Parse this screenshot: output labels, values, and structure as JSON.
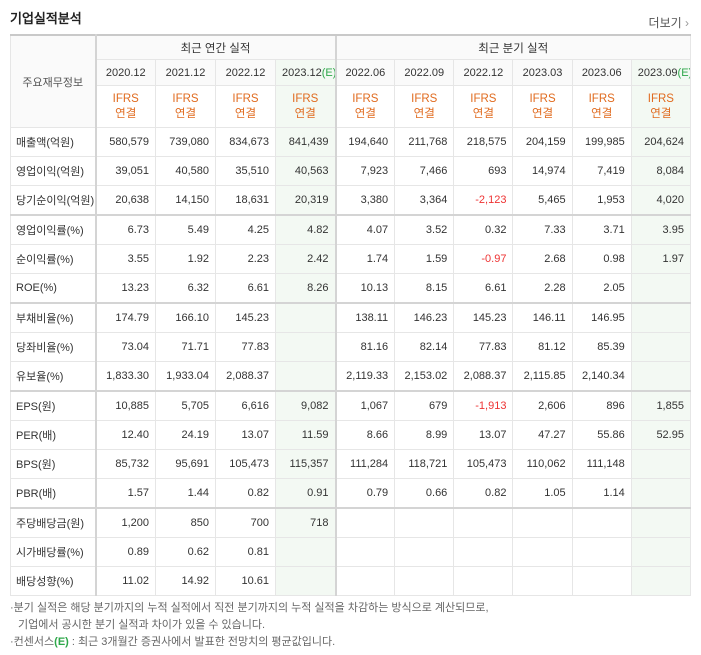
{
  "header": {
    "title": "기업실적분석",
    "more": "더보기"
  },
  "table": {
    "corner": "주요재무정보",
    "groups": [
      {
        "label": "최근 연간 실적",
        "span": 4
      },
      {
        "label": "최근 분기 실적",
        "span": 6
      }
    ],
    "periods": [
      {
        "date": "2020.12"
      },
      {
        "date": "2021.12"
      },
      {
        "date": "2022.12"
      },
      {
        "date": "2023.12",
        "estimate": "(E)"
      },
      {
        "date": "2022.06"
      },
      {
        "date": "2022.09"
      },
      {
        "date": "2022.12"
      },
      {
        "date": "2023.03"
      },
      {
        "date": "2023.06"
      },
      {
        "date": "2023.09",
        "estimate": "(E)"
      }
    ],
    "standard": [
      "IFRS",
      "연결"
    ],
    "sections": [
      [
        {
          "label": "매출액(억원)",
          "values": [
            "580,579",
            "739,080",
            "834,673",
            "841,439",
            "194,640",
            "211,768",
            "218,575",
            "204,159",
            "199,985",
            "204,624"
          ]
        },
        {
          "label": "영업이익(억원)",
          "values": [
            "39,051",
            "40,580",
            "35,510",
            "40,563",
            "7,923",
            "7,466",
            "693",
            "14,974",
            "7,419",
            "8,084"
          ]
        },
        {
          "label": "당기순이익(억원)",
          "values": [
            "20,638",
            "14,150",
            "18,631",
            "20,319",
            "3,380",
            "3,364",
            "-2,123",
            "5,465",
            "1,953",
            "4,020"
          ]
        }
      ],
      [
        {
          "label": "영업이익률(%)",
          "values": [
            "6.73",
            "5.49",
            "4.25",
            "4.82",
            "4.07",
            "3.52",
            "0.32",
            "7.33",
            "3.71",
            "3.95"
          ]
        },
        {
          "label": "순이익률(%)",
          "values": [
            "3.55",
            "1.92",
            "2.23",
            "2.42",
            "1.74",
            "1.59",
            "-0.97",
            "2.68",
            "0.98",
            "1.97"
          ]
        },
        {
          "label": "ROE(%)",
          "values": [
            "13.23",
            "6.32",
            "6.61",
            "8.26",
            "10.13",
            "8.15",
            "6.61",
            "2.28",
            "2.05",
            null
          ]
        }
      ],
      [
        {
          "label": "부채비율(%)",
          "values": [
            "174.79",
            "166.10",
            "145.23",
            null,
            "138.11",
            "146.23",
            "145.23",
            "146.11",
            "146.95",
            null
          ]
        },
        {
          "label": "당좌비율(%)",
          "values": [
            "73.04",
            "71.71",
            "77.83",
            null,
            "81.16",
            "82.14",
            "77.83",
            "81.12",
            "85.39",
            null
          ]
        },
        {
          "label": "유보율(%)",
          "values": [
            "1,833.30",
            "1,933.04",
            "2,088.37",
            null,
            "2,119.33",
            "2,153.02",
            "2,088.37",
            "2,115.85",
            "2,140.34",
            null
          ]
        }
      ],
      [
        {
          "label": "EPS(원)",
          "values": [
            "10,885",
            "5,705",
            "6,616",
            "9,082",
            "1,067",
            "679",
            "-1,913",
            "2,606",
            "896",
            "1,855"
          ]
        },
        {
          "label": "PER(배)",
          "values": [
            "12.40",
            "24.19",
            "13.07",
            "11.59",
            "8.66",
            "8.99",
            "13.07",
            "47.27",
            "55.86",
            "52.95"
          ]
        },
        {
          "label": "BPS(원)",
          "values": [
            "85,732",
            "95,691",
            "105,473",
            "115,357",
            "111,284",
            "118,721",
            "105,473",
            "110,062",
            "111,148",
            null
          ]
        },
        {
          "label": "PBR(배)",
          "values": [
            "1.57",
            "1.44",
            "0.82",
            "0.91",
            "0.79",
            "0.66",
            "0.82",
            "1.05",
            "1.14",
            null
          ]
        }
      ],
      [
        {
          "label": "주당배당금(원)",
          "values": [
            "1,200",
            "850",
            "700",
            "718",
            null,
            null,
            null,
            null,
            null,
            null
          ]
        },
        {
          "label": "시가배당률(%)",
          "values": [
            "0.89",
            "0.62",
            "0.81",
            null,
            null,
            null,
            null,
            null,
            null,
            null
          ]
        },
        {
          "label": "배당성향(%)",
          "values": [
            "11.02",
            "14.92",
            "10.61",
            null,
            null,
            null,
            null,
            null,
            null,
            null
          ]
        }
      ]
    ]
  },
  "notes": {
    "quarterly": [
      "분기 실적은 해당 분기까지의 누적 실적에서 직전 분기까지의 누적 실적을 차감하는 방식으로 계산되므로,",
      "기업에서 공시한 분기 실적과 차이가 있을 수 있습니다."
    ],
    "consensus": {
      "term": "컨센서스",
      "mark": "(E)",
      "text": " : 최근 3개월간 증권사에서 발표한 전망치의 평균값입니다."
    }
  }
}
